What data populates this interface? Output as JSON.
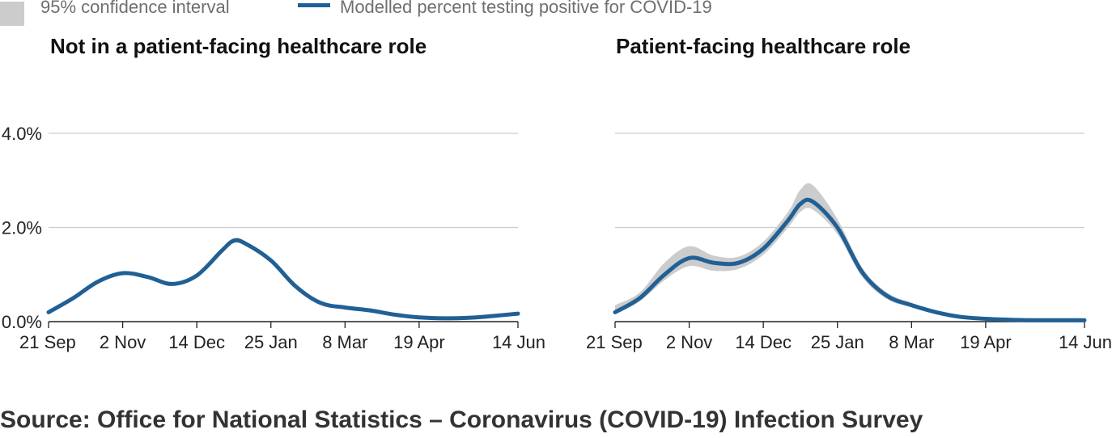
{
  "legend": {
    "ci_label": "95% confidence interval",
    "line_label": "Modelled percent testing positive for COVID-19"
  },
  "source": "Source: Office for National Statistics – Coronavirus (COVID-19) Infection Survey",
  "colors": {
    "line": "#206095",
    "ci": "#cccccc",
    "grid": "#cccccc",
    "axis": "#222222"
  },
  "chart_data": [
    {
      "type": "line",
      "title": "Not in a patient-facing healthcare role",
      "x_ticks": [
        "21 Sep",
        "2 Nov",
        "14 Dec",
        "25 Jan",
        "8 Mar",
        "19 Apr",
        "14 Jun"
      ],
      "y_ticks": [
        "0.0%",
        "2.0%",
        "4.0%"
      ],
      "ylim": [
        0,
        4
      ],
      "x": [
        "21 Sep",
        "5 Oct",
        "19 Oct",
        "2 Nov",
        "16 Nov",
        "30 Nov",
        "14 Dec",
        "28 Dec",
        "4 Jan",
        "11 Jan",
        "25 Jan",
        "8 Feb",
        "22 Feb",
        "8 Mar",
        "22 Mar",
        "5 Apr",
        "19 Apr",
        "3 May",
        "17 May",
        "31 May",
        "14 Jun"
      ],
      "series": [
        {
          "values": [
            0.2,
            0.5,
            0.85,
            1.03,
            0.95,
            0.8,
            0.98,
            1.5,
            1.72,
            1.65,
            1.3,
            0.75,
            0.4,
            0.3,
            0.24,
            0.15,
            0.09,
            0.07,
            0.08,
            0.12,
            0.17
          ],
          "ci_low": [
            0.19,
            0.48,
            0.83,
            1.0,
            0.92,
            0.78,
            0.95,
            1.46,
            1.67,
            1.6,
            1.26,
            0.72,
            0.38,
            0.28,
            0.23,
            0.14,
            0.08,
            0.06,
            0.07,
            0.11,
            0.15
          ],
          "ci_high": [
            0.21,
            0.52,
            0.87,
            1.06,
            0.98,
            0.82,
            1.01,
            1.54,
            1.77,
            1.7,
            1.34,
            0.78,
            0.42,
            0.32,
            0.26,
            0.16,
            0.1,
            0.08,
            0.09,
            0.13,
            0.19
          ]
        }
      ]
    },
    {
      "type": "line",
      "title": "Patient-facing healthcare role",
      "x_ticks": [
        "21 Sep",
        "2 Nov",
        "14 Dec",
        "25 Jan",
        "8 Mar",
        "19 Apr",
        "14 Jun"
      ],
      "y_ticks": [
        "0.0%",
        "2.0%",
        "4.0%"
      ],
      "ylim": [
        0,
        4
      ],
      "x": [
        "21 Sep",
        "5 Oct",
        "19 Oct",
        "2 Nov",
        "16 Nov",
        "30 Nov",
        "14 Dec",
        "28 Dec",
        "4 Jan",
        "11 Jan",
        "25 Jan",
        "8 Feb",
        "22 Feb",
        "8 Mar",
        "22 Mar",
        "5 Apr",
        "19 Apr",
        "3 May",
        "17 May",
        "31 May",
        "14 Jun"
      ],
      "series": [
        {
          "values": [
            0.2,
            0.5,
            1.0,
            1.35,
            1.25,
            1.25,
            1.55,
            2.15,
            2.5,
            2.55,
            2.0,
            1.05,
            0.55,
            0.35,
            0.2,
            0.1,
            0.06,
            0.04,
            0.03,
            0.03,
            0.03
          ],
          "ci_low": [
            0.15,
            0.43,
            0.88,
            1.18,
            1.08,
            1.12,
            1.42,
            2.0,
            2.33,
            2.38,
            1.86,
            0.95,
            0.48,
            0.3,
            0.17,
            0.08,
            0.04,
            0.02,
            0.01,
            0.01,
            0.01
          ],
          "ci_high": [
            0.35,
            0.62,
            1.25,
            1.6,
            1.4,
            1.38,
            1.7,
            2.33,
            2.8,
            2.9,
            2.18,
            1.15,
            0.62,
            0.4,
            0.24,
            0.13,
            0.08,
            0.06,
            0.05,
            0.05,
            0.05
          ]
        }
      ]
    }
  ]
}
